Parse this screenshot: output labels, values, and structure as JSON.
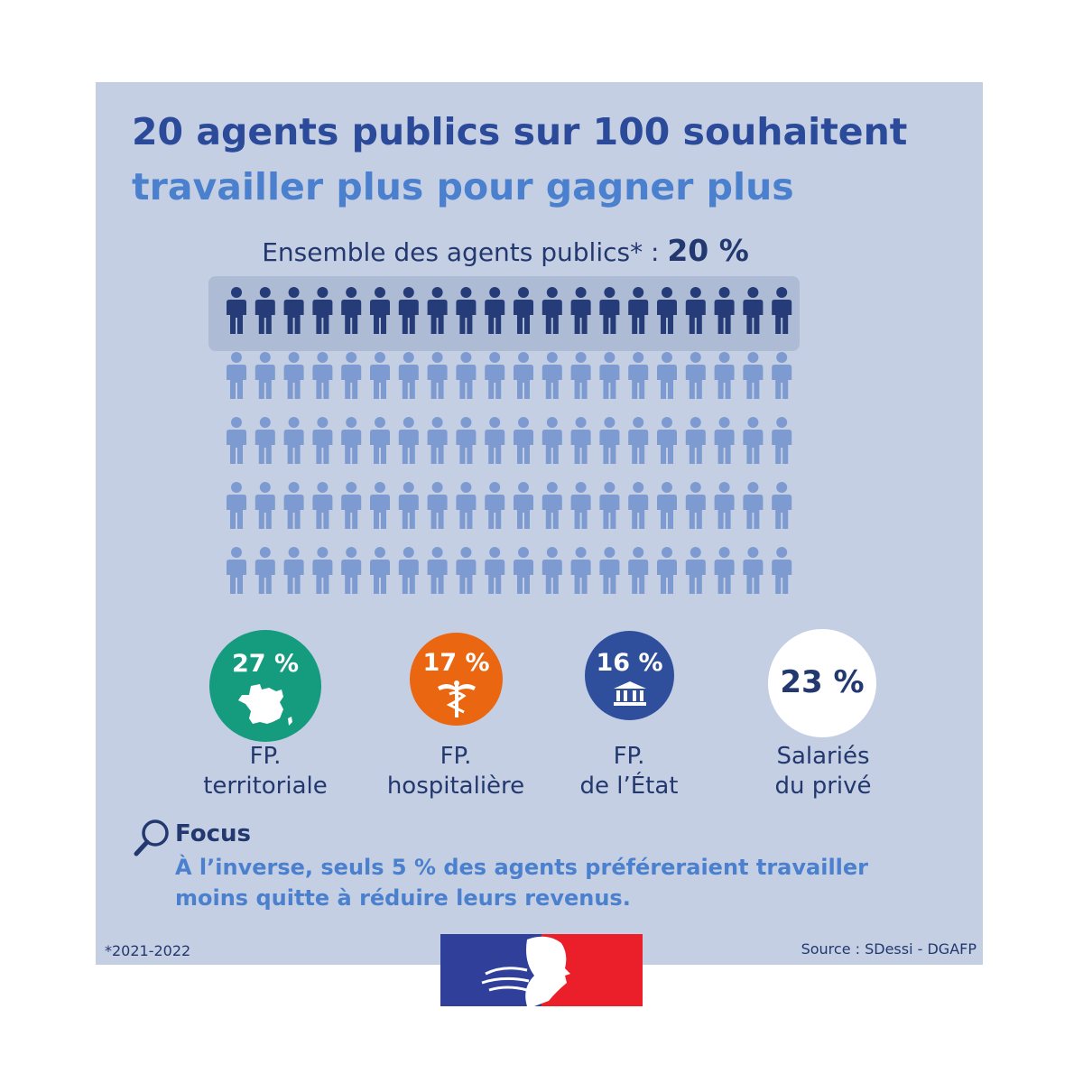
{
  "title": {
    "line1": "20 agents publics sur 100 souhaitent",
    "line2": "travailler plus pour gagner plus"
  },
  "subtitle": {
    "label": "Ensemble des agents publics* : ",
    "value": "20 %"
  },
  "pictogram": {
    "total": 100,
    "highlighted": 20,
    "rows": 5,
    "per_row": 20
  },
  "categories": [
    {
      "value": "27 %",
      "label_line1": "FP.",
      "label_line2": "territoriale",
      "icon": "france-map-icon",
      "color": "#159c7e"
    },
    {
      "value": "17 %",
      "label_line1": "FP.",
      "label_line2": "hospitalière",
      "icon": "caduceus-icon",
      "color": "#ea6611"
    },
    {
      "value": "16 %",
      "label_line1": "FP.",
      "label_line2": "de l’État",
      "icon": "government-building-icon",
      "color": "#2f4e9c"
    },
    {
      "value": "23 %",
      "label_line1": "Salariés",
      "label_line2": "du privé",
      "icon": "",
      "color": "#ffffff"
    }
  ],
  "focus": {
    "icon": "magnifier-icon",
    "title": "Focus",
    "line1": "À l’inverse, seuls 5 % des agents préféreraient travailler",
    "line2": "moins quitte à réduire leurs revenus."
  },
  "footnote": "*2021-2022",
  "source": "Source : SDessi - DGAFP",
  "logo": "marianne-flag-logo",
  "colors": {
    "panel": "#c5cfe4",
    "title_dark": "#2b4a99",
    "title_light": "#4a80cd",
    "person_dark": "#253c78",
    "person_light": "#7e9bd1"
  }
}
